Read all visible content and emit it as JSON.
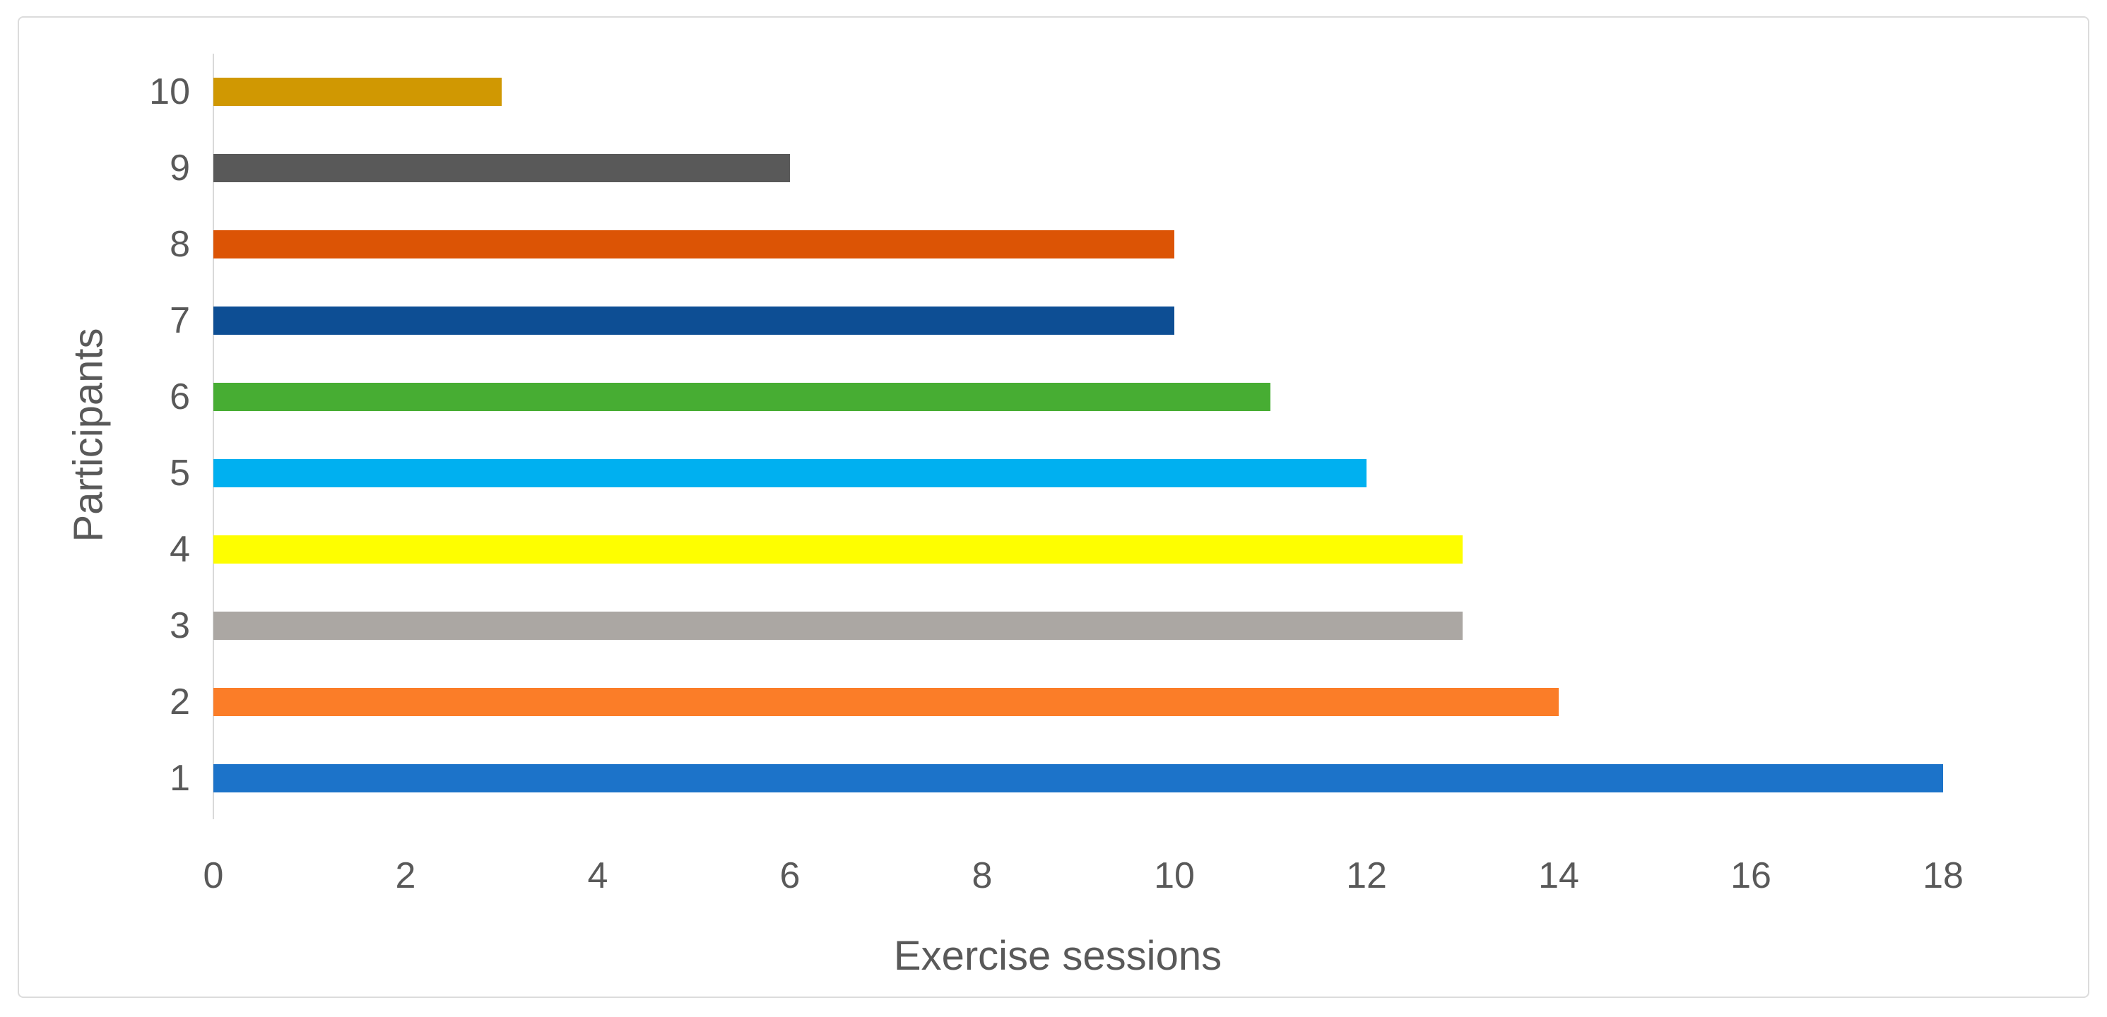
{
  "chart": {
    "xlabel": "Exercise sessions",
    "ylabel": "Participants"
  },
  "chart_data": {
    "type": "bar",
    "orientation": "horizontal",
    "title": "",
    "xlabel": "Exercise sessions",
    "ylabel": "Participants",
    "categories": [
      "10",
      "9",
      "8",
      "7",
      "6",
      "5",
      "4",
      "3",
      "2",
      "1"
    ],
    "values": [
      3,
      6,
      10,
      10,
      11,
      12,
      13,
      13,
      14,
      18
    ],
    "colors": [
      "#D09802",
      "#595959",
      "#DC5405",
      "#0D4E94",
      "#47AD33",
      "#00B0F0",
      "#FEFE00",
      "#ABA7A3",
      "#FB7D28",
      "#1C73C9"
    ],
    "xlim": [
      0,
      18
    ],
    "xticks": [
      0,
      2,
      4,
      6,
      8,
      10,
      12,
      14,
      16,
      18
    ],
    "grid": false,
    "legend": false,
    "axis_text_color": "#595959",
    "axis_line_color": "#D9D9D9",
    "frame_border_color": "#DCDCDC"
  }
}
